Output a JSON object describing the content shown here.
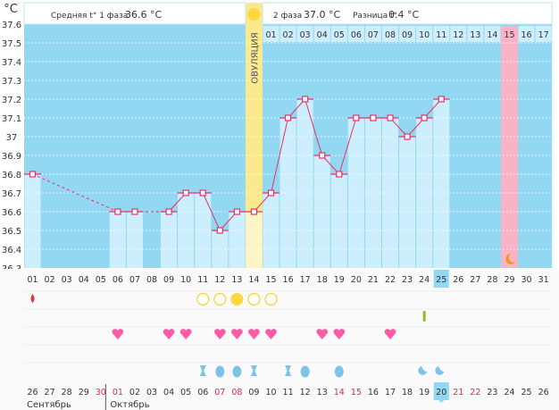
{
  "header": {
    "unit": "°C",
    "phase1_label": "Средняя t° 1 фаза",
    "phase1_value": "36.6 °C",
    "phase2_label": "2 фаза",
    "phase2_value": "37.0 °C",
    "diff_label": "Разница t°",
    "diff_value": "0.4 °C",
    "ovulation_label": "ОВУЛЯЦИЯ"
  },
  "colors": {
    "background": "#93d8f2",
    "bar": "#cdeefc",
    "line": "#ef2e68",
    "ovulation": "#fbe98e",
    "ovulation_bar": "#fdf5c6",
    "pink_day": "#f9b3c6",
    "heart": "#ff5aa8",
    "drop_blue": "#7cc3ec",
    "sun": "#fcd740"
  },
  "chart_data": {
    "type": "line",
    "title": "",
    "ylabel": "°C",
    "ylim": [
      36.3,
      37.6
    ],
    "yticks": [
      "37.6",
      "37.5",
      "37.4",
      "37.3",
      "37.2",
      "37.1",
      "37",
      "36.9",
      "36.8",
      "36.7",
      "36.6",
      "36.5",
      "36.4",
      "36.3"
    ],
    "cycle_days": [
      "01",
      "02",
      "03",
      "04",
      "05",
      "06",
      "07",
      "08",
      "09",
      "10",
      "11",
      "12",
      "13",
      "14",
      "15",
      "16",
      "17",
      "18",
      "19",
      "20",
      "21",
      "22",
      "23",
      "24",
      "25",
      "26",
      "27",
      "28",
      "29",
      "30",
      "31"
    ],
    "temperatures": [
      36.8,
      null,
      null,
      null,
      null,
      36.6,
      36.6,
      null,
      36.6,
      36.7,
      36.7,
      36.5,
      36.6,
      36.6,
      36.7,
      37.1,
      37.2,
      36.9,
      36.8,
      37.1,
      37.1,
      37.1,
      37.0,
      37.1,
      37.2,
      null,
      null,
      null,
      null,
      null,
      null
    ],
    "ovulation_day": 14,
    "current_day": 25,
    "expected_period_day": 29,
    "phase2_days": [
      "01",
      "02",
      "03",
      "04",
      "05",
      "06",
      "07",
      "08",
      "09",
      "10",
      "11",
      "12",
      "13",
      "14",
      "15",
      "16",
      "17"
    ],
    "calendar_dates": [
      "26",
      "27",
      "28",
      "29",
      "30",
      "01",
      "02",
      "03",
      "04",
      "05",
      "06",
      "07",
      "08",
      "09",
      "10",
      "11",
      "12",
      "13",
      "14",
      "15",
      "16",
      "17",
      "18",
      "19",
      "20",
      "21",
      "22",
      "23",
      "24",
      "25",
      "26"
    ],
    "calendar_red_days": [
      5,
      6,
      12,
      13,
      19,
      20,
      26,
      27
    ],
    "months": [
      "Сентябрь",
      "Октябрь"
    ],
    "markers": {
      "period_drop": [
        1
      ],
      "ovulation_test_negative": [
        11,
        12,
        14,
        15
      ],
      "ovulation_test_positive": [
        13
      ],
      "pregnancy_test": [
        24
      ],
      "intercourse": [
        6,
        9,
        10,
        12,
        13,
        14,
        15,
        18,
        19,
        22
      ],
      "discharge_sticky": [
        11,
        14,
        16
      ],
      "discharge_watery": [
        12,
        13,
        17,
        19
      ],
      "discharge_creamy": [
        24,
        25
      ]
    }
  }
}
